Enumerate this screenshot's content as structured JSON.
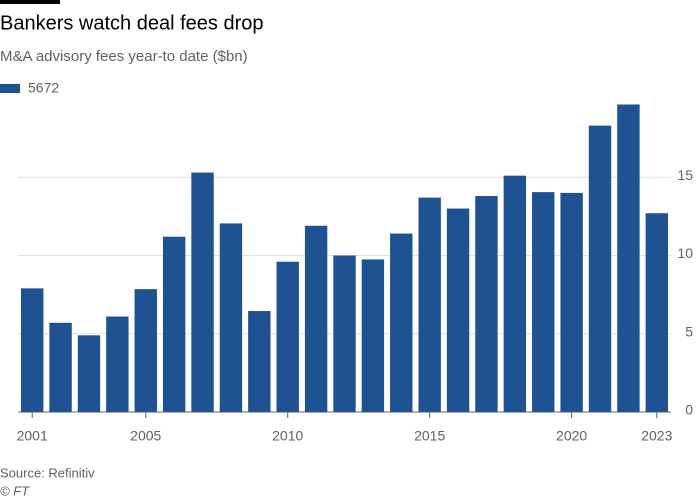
{
  "chart_data": {
    "type": "bar",
    "title": "Bankers watch deal fees drop",
    "subtitle": "M&A advisory fees year-to date ($bn)",
    "source": "Source: Refinitiv",
    "footer": "© FT",
    "categories": [
      "2001",
      null,
      null,
      null,
      "2005",
      null,
      null,
      null,
      null,
      "2010",
      null,
      null,
      null,
      null,
      "2015",
      null,
      null,
      null,
      null,
      "2020",
      null,
      null,
      "2023"
    ],
    "series": [
      {
        "name": "5672",
        "color": "#1f5293",
        "values": [
          7.9,
          5.7,
          4.9,
          6.1,
          7.85,
          11.2,
          15.3,
          12.05,
          6.45,
          9.6,
          11.9,
          10.0,
          9.75,
          11.4,
          13.7,
          13.0,
          13.8,
          15.1,
          14.05,
          14.0,
          18.3,
          19.65,
          12.7
        ]
      }
    ],
    "ylim": [
      0,
      20
    ],
    "yticks": [
      0,
      5,
      10,
      15
    ],
    "grid": true,
    "legend": "top-left"
  }
}
